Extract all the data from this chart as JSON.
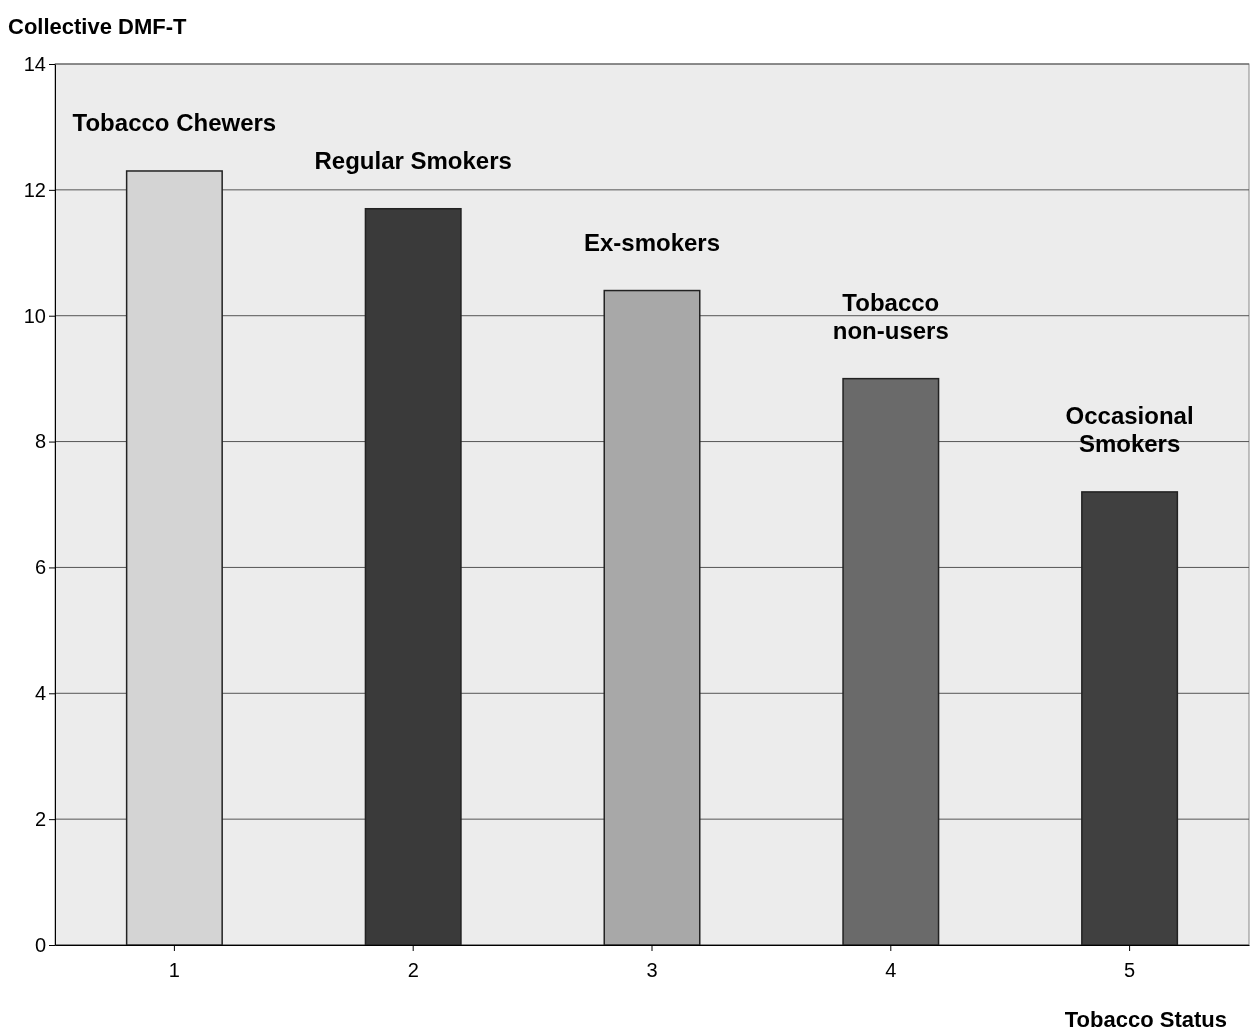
{
  "chart_data": {
    "type": "bar",
    "ylabel": "Collective DMF-T",
    "xlabel": "Tobacco Status",
    "categories": [
      "1",
      "2",
      "3",
      "4",
      "5"
    ],
    "values": [
      12.3,
      11.7,
      10.4,
      9.0,
      7.2
    ],
    "colors": [
      "#d4d4d4",
      "#3a3a3a",
      "#a8a8a8",
      "#6a6a6a",
      "#404040"
    ],
    "ylim": [
      0,
      14
    ],
    "yticks": [
      0,
      2,
      4,
      6,
      8,
      10,
      12,
      14
    ],
    "grid": "y",
    "annotations": [
      {
        "text": "Tobacco Chewers",
        "x": "1",
        "y": 12.3
      },
      {
        "text": "Regular Smokers",
        "x": "2",
        "y": 11.7
      },
      {
        "text": "Ex-smokers",
        "x": "3",
        "y": 10.4
      },
      {
        "text": "Tobacco\nnon-users",
        "x": "4",
        "y": 9.0
      },
      {
        "text": "Occasional\nSmokers",
        "x": "5",
        "y": 7.2
      }
    ]
  }
}
